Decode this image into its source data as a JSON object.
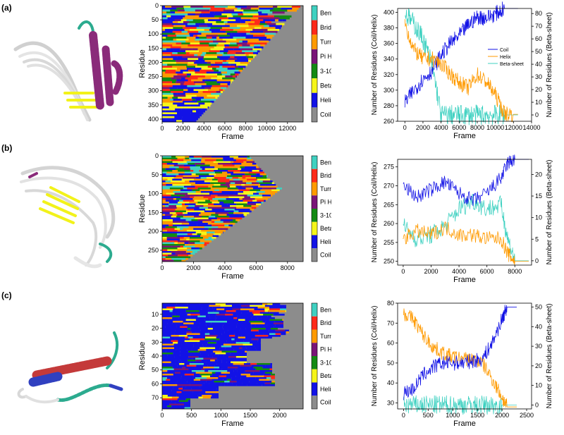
{
  "colors": {
    "Bend": "#3fd1c1",
    "Bridge": "#ff2a1a",
    "Turn": "#ff9a00",
    "Pi Helix": "#7a1578",
    "3-10 Helix": "#138a13",
    "Beta-sheet": "#f5f51a",
    "Helix": "#1212e6",
    "Coil": "#8c8c8c",
    "coil_line": "#1212e6",
    "helix_line": "#ff9a00",
    "beta_line": "#3fd1c1"
  },
  "legend_labels": [
    "Bend",
    "Bridge",
    "Turn",
    "Pi Helix",
    "3-10 Helix",
    "Beta-sheet",
    "Helix",
    "Coil"
  ],
  "panels": [
    {
      "label": "(a)",
      "heatmap": {
        "ylabel": "Residue",
        "xlabel": "Frame",
        "x_ticks": [
          "0",
          "2000",
          "4000",
          "6000",
          "8000",
          "10000",
          "12000"
        ],
        "y_ticks": [
          "0",
          "50",
          "100",
          "150",
          "200",
          "250",
          "300",
          "350",
          "400"
        ]
      },
      "chart_data": {
        "type": "line",
        "xlabel": "Frame",
        "ylabel_left": "Number of Residues (Coil/Helix)",
        "ylabel_right": "Number of Residues (Beta-sheet)",
        "x_ticks": [
          "0",
          "2000",
          "4000",
          "6000",
          "8000",
          "10000",
          "12000",
          "14000"
        ],
        "y_left_ticks": [
          "260",
          "280",
          "300",
          "320",
          "340",
          "360",
          "380",
          "400"
        ],
        "y_right_ticks": [
          "0",
          "10",
          "20",
          "30",
          "40",
          "50",
          "60",
          "70",
          "80"
        ],
        "xlim": [
          -800,
          14000
        ],
        "ylim_left": [
          260,
          405
        ],
        "ylim_right": [
          -5,
          84
        ],
        "legend": [
          "Coil",
          "Helix",
          "Beta-sheet"
        ],
        "series": [
          {
            "name": "Coil",
            "axis": "left",
            "x": [
              0,
              1000,
              2000,
              3000,
              4000,
              5000,
              6000,
              7000,
              8000,
              9000,
              10000,
              11000,
              12000,
              12500
            ],
            "values": [
              284,
              300,
              314,
              325,
              345,
              360,
              370,
              384,
              394,
              393,
              398,
              405,
              405,
              405
            ]
          },
          {
            "name": "Helix",
            "axis": "left",
            "x": [
              0,
              1000,
              2000,
              3000,
              4000,
              5000,
              6000,
              7000,
              8000,
              9000,
              10000,
              11000,
              12000,
              12500
            ],
            "values": [
              385,
              352,
              340,
              340,
              334,
              321,
              310,
              303,
              320,
              311,
              294,
              270,
              269,
              269
            ]
          },
          {
            "name": "Beta-sheet",
            "axis": "right",
            "x": [
              0,
              1000,
              2000,
              3000,
              4000,
              5000,
              6000,
              7000,
              8000,
              9000,
              10000,
              11000,
              12000,
              12500
            ],
            "values": [
              80,
              72,
              60,
              40,
              0,
              0,
              0,
              0,
              0,
              0,
              0,
              0,
              0,
              0
            ]
          }
        ]
      }
    },
    {
      "label": "(b)",
      "heatmap": {
        "ylabel": "Residue",
        "xlabel": "Frame",
        "x_ticks": [
          "0",
          "2000",
          "4000",
          "6000",
          "8000"
        ],
        "y_ticks": [
          "0",
          "50",
          "100",
          "150",
          "200",
          "250"
        ]
      },
      "chart_data": {
        "type": "line",
        "xlabel": "Frame",
        "ylabel_left": "Number of Residues (Coil/Helix)",
        "ylabel_right": "Number of Residues (Beta-sheet)",
        "x_ticks": [
          "0",
          "2000",
          "4000",
          "6000",
          "8000"
        ],
        "y_left_ticks": [
          "250",
          "255",
          "260",
          "265",
          "270",
          "275"
        ],
        "y_right_ticks": [
          "0",
          "5",
          "10",
          "15",
          "20"
        ],
        "xlim": [
          -400,
          9200
        ],
        "ylim_left": [
          249,
          277
        ],
        "ylim_right": [
          -1,
          23.5
        ],
        "series": [
          {
            "name": "Coil",
            "axis": "left",
            "x": [
              0,
              1000,
              2000,
              3000,
              4000,
              5000,
              6000,
              7000,
              7500,
              8000,
              9000
            ],
            "values": [
              270,
              267,
              269,
              271,
              268,
              266,
              268,
              272,
              276,
              277,
              277
            ]
          },
          {
            "name": "Helix",
            "axis": "left",
            "x": [
              0,
              1000,
              2000,
              3000,
              4000,
              5000,
              6000,
              7000,
              7500,
              8000,
              9000
            ],
            "values": [
              256,
              258,
              257,
              259,
              257,
              257,
              256,
              256,
              252,
              250,
              250
            ]
          },
          {
            "name": "Beta-sheet",
            "axis": "right",
            "x": [
              0,
              1000,
              2000,
              3000,
              4000,
              5000,
              6000,
              7000,
              7500,
              8000,
              9000
            ],
            "values": [
              8,
              5,
              6,
              8,
              12,
              14,
              12,
              13,
              5,
              0,
              0
            ]
          }
        ]
      }
    },
    {
      "label": "(c)",
      "heatmap": {
        "ylabel": "Residue",
        "xlabel": "Frame",
        "x_ticks": [
          "0",
          "500",
          "1000",
          "1500",
          "2000"
        ],
        "y_ticks": [
          "10",
          "20",
          "30",
          "40",
          "50",
          "60",
          "70"
        ]
      },
      "chart_data": {
        "type": "line",
        "xlabel": "Frame",
        "ylabel_left": "Number of Residues (Coil/Helix)",
        "ylabel_right": "Number of Residues (Beta-sheet)",
        "x_ticks": [
          "0",
          "500",
          "1000",
          "1500",
          "2000",
          "2500"
        ],
        "y_left_ticks": [
          "30",
          "40",
          "50",
          "60",
          "70",
          "80"
        ],
        "y_right_ticks": [
          "0",
          "10",
          "20",
          "30",
          "40",
          "50"
        ],
        "xlim": [
          -120,
          2600
        ],
        "ylim_left": [
          27,
          80
        ],
        "ylim_right": [
          -2,
          52
        ],
        "series": [
          {
            "name": "Coil",
            "axis": "left",
            "x": [
              0,
              200,
              400,
              600,
              800,
              1000,
              1200,
              1400,
              1600,
              1800,
              2000,
              2100,
              2300
            ],
            "values": [
              35,
              37,
              44,
              48,
              50,
              50,
              50,
              51,
              52,
              60,
              72,
              78,
              78
            ]
          },
          {
            "name": "Helix",
            "axis": "left",
            "x": [
              0,
              200,
              400,
              600,
              800,
              1000,
              1200,
              1400,
              1600,
              1800,
              2000,
              2100,
              2300
            ],
            "values": [
              75,
              72,
              64,
              58,
              55,
              53,
              52,
              52,
              50,
              42,
              33,
              28,
              28
            ]
          },
          {
            "name": "Beta-sheet",
            "axis": "right",
            "x": [
              0,
              200,
              400,
              600,
              800,
              1000,
              1200,
              1400,
              1600,
              1800,
              2000,
              2100,
              2300
            ],
            "values": [
              0,
              0,
              0,
              0,
              0,
              0,
              0,
              0,
              0,
              0,
              0,
              0,
              0
            ]
          }
        ]
      }
    }
  ]
}
